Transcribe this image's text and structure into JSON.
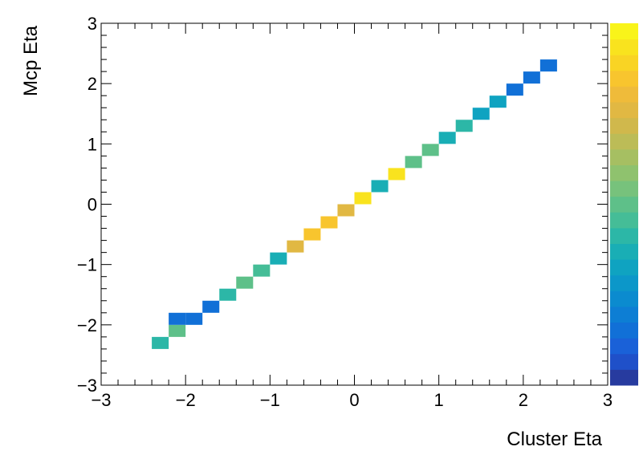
{
  "chart_data": {
    "type": "heatmap",
    "title": "",
    "xlabel": "Cluster Eta",
    "ylabel": "Mcp Eta",
    "xlim": [
      -3,
      3
    ],
    "ylim": [
      -3,
      3
    ],
    "bin_width": 0.2,
    "xticks": [
      -3,
      -2,
      -1,
      0,
      1,
      2,
      3
    ],
    "yticks": [
      -3,
      -2,
      -1,
      0,
      1,
      2,
      3
    ],
    "xtick_labels": [
      "−3",
      "−2",
      "−1",
      "0",
      "1",
      "2",
      "3"
    ],
    "ytick_labels": [
      "−3",
      "−2",
      "−1",
      "0",
      "1",
      "2",
      "3"
    ],
    "grid": false,
    "legend": "none",
    "colorbar": true,
    "colorbar_colors": [
      "#273b9f",
      "#1f50c9",
      "#1a61d8",
      "#1170d7",
      "#0d7ed4",
      "#0b8bcf",
      "#0c97c9",
      "#0fa3c1",
      "#19aeb5",
      "#2cb7a7",
      "#45bd97",
      "#5ec089",
      "#77c27c",
      "#8fc26e",
      "#a6bf62",
      "#bcbc57",
      "#d0b84c",
      "#e1b843",
      "#efbb3a",
      "#f8c52e",
      "#f9d424",
      "#f9e31e",
      "#f9f41a"
    ],
    "cells": [
      {
        "x": -2.3,
        "y": -2.3,
        "level": 0.4
      },
      {
        "x": -2.1,
        "y": -2.1,
        "level": 0.5
      },
      {
        "x": -2.1,
        "y": -1.9,
        "level": 0.14
      },
      {
        "x": -1.9,
        "y": -1.9,
        "level": 0.14
      },
      {
        "x": -1.7,
        "y": -1.7,
        "level": 0.14
      },
      {
        "x": -1.5,
        "y": -1.5,
        "level": 0.4
      },
      {
        "x": -1.3,
        "y": -1.3,
        "level": 0.5
      },
      {
        "x": -1.1,
        "y": -1.1,
        "level": 0.45
      },
      {
        "x": -0.9,
        "y": -0.9,
        "level": 0.36
      },
      {
        "x": -0.7,
        "y": -0.7,
        "level": 0.78
      },
      {
        "x": -0.5,
        "y": -0.5,
        "level": 0.88
      },
      {
        "x": -0.3,
        "y": -0.3,
        "level": 0.88
      },
      {
        "x": -0.1,
        "y": -0.1,
        "level": 0.78
      },
      {
        "x": 0.1,
        "y": 0.1,
        "level": 0.97
      },
      {
        "x": 0.3,
        "y": 0.3,
        "level": 0.36
      },
      {
        "x": 0.5,
        "y": 0.5,
        "level": 0.97
      },
      {
        "x": 0.7,
        "y": 0.7,
        "level": 0.5
      },
      {
        "x": 0.9,
        "y": 0.9,
        "level": 0.5
      },
      {
        "x": 1.1,
        "y": 1.1,
        "level": 0.36
      },
      {
        "x": 1.3,
        "y": 1.3,
        "level": 0.4
      },
      {
        "x": 1.5,
        "y": 1.5,
        "level": 0.3
      },
      {
        "x": 1.7,
        "y": 1.7,
        "level": 0.3
      },
      {
        "x": 1.9,
        "y": 1.9,
        "level": 0.14
      },
      {
        "x": 2.1,
        "y": 2.1,
        "level": 0.14
      },
      {
        "x": 2.3,
        "y": 2.3,
        "level": 0.14
      }
    ]
  }
}
